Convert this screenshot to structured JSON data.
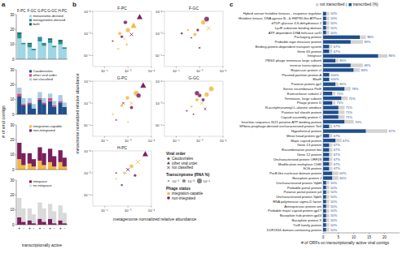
{
  "figure": {
    "panel_labels": [
      "a",
      "b",
      "c"
    ],
    "a_ylabel": "# of viral contigs",
    "a_xlabel": "transcriptionally active",
    "a_groups": [
      "F-PC",
      "F-GC",
      "G-PC",
      "G-GC",
      "H-PC"
    ],
    "b_xlabel": "metagenome normalized relative abundance",
    "b_ylabel": "metavirome normalized relative abundance",
    "b_legend": {
      "order_title": "Viral order",
      "orders": [
        {
          "name": "Caudovirales",
          "marker": "circle"
        },
        {
          "name": "other viral order",
          "marker": "triangle"
        },
        {
          "name": "not classified",
          "marker": "cross"
        }
      ],
      "size_title": "Transcriptome (RNA %)",
      "sizes": [
        {
          "value": 0.001,
          "label": "10⁻³"
        },
        {
          "value": 0.01,
          "label": "10⁻²"
        },
        {
          "value": 0.1,
          "label": "10⁻¹"
        }
      ],
      "status_title": "Phage status"
    }
  },
  "chart_data": [
    {
      "type": "bar",
      "stacked": true,
      "legend": "upper right",
      "categories": [
        null,
        null,
        null,
        null,
        null,
        null,
        null,
        null,
        null,
        null
      ],
      "ylim": [
        0,
        30
      ],
      "yticks": [
        0,
        10,
        20,
        30
      ],
      "series": [
        {
          "name": "metavirome-derived",
          "color": "#9fd6e3",
          "values": [
            14,
            10,
            8,
            6,
            12,
            9,
            11,
            8,
            10,
            7
          ]
        },
        {
          "name": "metagenome-derived",
          "color": "#2b8f97",
          "values": [
            3,
            1,
            2,
            1,
            3,
            2,
            2,
            1,
            2,
            1
          ]
        },
        {
          "name": "both",
          "color": "#1d5c5a",
          "values": [
            1,
            0,
            1,
            0,
            0,
            0,
            1,
            0,
            1,
            0
          ]
        }
      ]
    },
    {
      "type": "bar",
      "stacked": true,
      "legend": "upper right",
      "categories": [
        null,
        null,
        null,
        null,
        null,
        null,
        null,
        null,
        null,
        null
      ],
      "ylim": [
        0,
        30
      ],
      "yticks": [
        0,
        10,
        20,
        30
      ],
      "series": [
        {
          "name": "Caudovirales",
          "color": "#1f4e8c",
          "values": [
            12,
            6,
            7,
            4,
            10,
            7,
            9,
            5,
            8,
            5
          ]
        },
        {
          "name": "other viral order",
          "color": "#e2457a",
          "values": [
            2,
            1,
            1,
            0,
            1,
            1,
            2,
            1,
            1,
            0
          ]
        },
        {
          "name": "not classified",
          "color": "#a6cee3",
          "values": [
            4,
            4,
            3,
            3,
            4,
            3,
            3,
            3,
            4,
            3
          ]
        }
      ]
    },
    {
      "type": "bar",
      "stacked": true,
      "legend": "upper right",
      "categories": [
        null,
        null,
        null,
        null,
        null,
        null,
        null,
        null,
        null,
        null
      ],
      "ylim": [
        0,
        30
      ],
      "yticks": [
        0,
        10,
        20,
        30
      ],
      "series": [
        {
          "name": "integration-capable",
          "color": "#f2b843",
          "values": [
            7,
            3,
            4,
            2,
            6,
            3,
            5,
            2,
            5,
            2
          ]
        },
        {
          "name": "non-integrated",
          "color": "#7a1f5c",
          "values": [
            11,
            8,
            7,
            5,
            9,
            8,
            9,
            7,
            8,
            6
          ]
        }
      ]
    },
    {
      "type": "bar",
      "stacked": true,
      "legend": "upper right",
      "categories": [
        "+",
        "-",
        "+",
        "-",
        "+",
        "-",
        "+",
        "-",
        "+",
        "-"
      ],
      "ylim": [
        0,
        30
      ],
      "yticks": [
        0,
        10,
        20,
        30
      ],
      "series": [
        {
          "name": "integrase",
          "color": "#7a1f5c",
          "values": [
            5,
            2,
            3,
            1,
            4,
            2,
            4,
            1,
            3,
            1
          ]
        },
        {
          "name": "no integrase",
          "color": "#d9d9d9",
          "values": [
            13,
            9,
            8,
            6,
            11,
            9,
            10,
            8,
            10,
            7
          ]
        }
      ]
    },
    {
      "type": "scatter",
      "title": "F-PC",
      "log": true,
      "xlim": [
        1e-06,
        0.1
      ],
      "ylim": [
        1e-06,
        0.1
      ],
      "xticks": [
        {
          "value": 1e-05,
          "label": "10⁻⁵"
        },
        {
          "value": 0.001,
          "label": "10⁻³"
        },
        {
          "value": 0.1,
          "label": "10⁻¹"
        }
      ],
      "yticks": [
        {
          "value": 1e-05,
          "label": "10⁻⁵"
        },
        {
          "value": 0.001,
          "label": "10⁻³"
        },
        {
          "value": 0.1,
          "label": "10⁻¹"
        }
      ],
      "series": [
        {
          "name": "integration-capable",
          "color": "#f2b843",
          "x": [
            0.0002,
            0.0005,
            0.001,
            0.003,
            0.0008,
            0.00015
          ],
          "values": [
            0.001,
            0.0003,
            0.002,
            0.005,
            0.0001,
            4e-05
          ],
          "sizes": [
            0.01,
            0.001,
            0.05,
            0.1,
            0.002,
            0.001
          ],
          "orders": [
            "Caudovirales",
            "Caudovirales",
            "Caudovirales",
            "other viral order",
            "Caudovirales",
            "not classified"
          ]
        },
        {
          "name": "non-integrated",
          "color": "#7a1f5c",
          "x": [
            0.0003,
            0.0006,
            0.002,
            0.01,
            5e-05
          ],
          "values": [
            0.0005,
            0.01,
            0.0008,
            0.03,
            0.0002
          ],
          "sizes": [
            0.005,
            0.02,
            0.01,
            0.1,
            0.001
          ],
          "orders": [
            "Caudovirales",
            "Caudovirales",
            "not classified",
            "other viral order",
            "Caudovirales"
          ]
        }
      ]
    },
    {
      "type": "scatter",
      "title": "F-GC",
      "log": true,
      "xlim": [
        1e-06,
        0.1
      ],
      "ylim": [
        1e-06,
        0.1
      ],
      "xticks": [
        {
          "value": 1e-05,
          "label": "10⁻⁵"
        },
        {
          "value": 0.001,
          "label": "10⁻³"
        },
        {
          "value": 0.1,
          "label": "10⁻¹"
        }
      ],
      "yticks": [
        {
          "value": 1e-05,
          "label": "10⁻⁵"
        },
        {
          "value": 0.001,
          "label": "10⁻³"
        },
        {
          "value": 0.1,
          "label": "10⁻¹"
        }
      ],
      "series": [
        {
          "name": "integration-capable",
          "color": "#f2b843",
          "x": [
            0.0001,
            0.0004,
            0.002,
            0.006
          ],
          "values": [
            0.002,
            0.0008,
            0.01,
            0.003
          ],
          "sizes": [
            0.002,
            0.01,
            0.05,
            0.02
          ],
          "orders": [
            "Caudovirales",
            "Caudovirales",
            "Caudovirales",
            "not classified"
          ]
        },
        {
          "name": "non-integrated",
          "color": "#7a1f5c",
          "x": [
            0.0002,
            0.0007,
            0.001,
            0.004,
            3e-05
          ],
          "values": [
            0.0004,
            0.002,
            5e-05,
            0.02,
            0.001
          ],
          "sizes": [
            0.001,
            0.005,
            0.001,
            0.1,
            0.002
          ],
          "orders": [
            "Caudovirales",
            "Caudovirales",
            "not classified",
            "Caudovirales",
            "Caudovirales"
          ]
        }
      ]
    },
    {
      "type": "scatter",
      "title": "G-PC",
      "log": true,
      "xlim": [
        1e-06,
        0.1
      ],
      "ylim": [
        1e-06,
        0.1
      ],
      "xticks": [
        {
          "value": 1e-05,
          "label": "10⁻⁵"
        },
        {
          "value": 0.001,
          "label": "10⁻³"
        },
        {
          "value": 0.1,
          "label": "10⁻¹"
        }
      ],
      "yticks": [
        {
          "value": 1e-05,
          "label": "10⁻⁵"
        },
        {
          "value": 0.001,
          "label": "10⁻³"
        },
        {
          "value": 0.1,
          "label": "10⁻¹"
        }
      ],
      "series": [
        {
          "name": "integration-capable",
          "color": "#f2b843",
          "x": [
            5e-05,
            0.0003,
            0.0009,
            0.002,
            0.005,
            0.001
          ],
          "values": [
            0.0001,
            0.0006,
            0.003,
            0.001,
            0.008,
            2e-05
          ],
          "sizes": [
            0.001,
            0.005,
            0.02,
            0.01,
            0.1,
            0.001
          ],
          "orders": [
            "Caudovirales",
            "Caudovirales",
            "Caudovirales",
            "not classified",
            "Caudovirales",
            "Caudovirales"
          ]
        },
        {
          "name": "non-integrated",
          "color": "#7a1f5c",
          "x": [
            0.0001,
            0.0004,
            0.002,
            0.008,
            0.02
          ],
          "values": [
            3e-05,
            0.001,
            0.0004,
            0.005,
            0.04
          ],
          "sizes": [
            0.001,
            0.002,
            0.01,
            0.05,
            0.1
          ],
          "orders": [
            "Caudovirales",
            "not classified",
            "Caudovirales",
            "Caudovirales",
            "other viral order"
          ]
        }
      ]
    },
    {
      "type": "scatter",
      "title": "G-GC",
      "log": true,
      "xlim": [
        1e-06,
        0.1
      ],
      "ylim": [
        1e-06,
        0.1
      ],
      "xticks": [
        {
          "value": 1e-05,
          "label": "10⁻⁵"
        },
        {
          "value": 0.001,
          "label": "10⁻³"
        },
        {
          "value": 0.1,
          "label": "10⁻¹"
        }
      ],
      "yticks": [
        {
          "value": 1e-05,
          "label": "10⁻⁵"
        },
        {
          "value": 0.001,
          "label": "10⁻³"
        },
        {
          "value": 0.1,
          "label": "10⁻¹"
        }
      ],
      "series": [
        {
          "name": "integration-capable",
          "color": "#f2b843",
          "x": [
            0.0002,
            0.0006,
            0.0015,
            0.004,
            0.01
          ],
          "values": [
            0.0005,
            0.002,
            0.001,
            0.006,
            0.02
          ],
          "sizes": [
            0.002,
            0.01,
            0.005,
            0.05,
            0.1
          ],
          "orders": [
            "Caudovirales",
            "Caudovirales",
            "not classified",
            "Caudovirales",
            "Caudovirales"
          ]
        },
        {
          "name": "non-integrated",
          "color": "#7a1f5c",
          "x": [
            8e-05,
            0.0003,
            0.001,
            0.003,
            0.0006,
            0.002
          ],
          "values": [
            0.0002,
            0.0001,
            0.005,
            0.0003,
            0.008,
            0.002
          ],
          "sizes": [
            0.001,
            0.001,
            0.02,
            0.002,
            0.05,
            0.01
          ],
          "orders": [
            "Caudovirales",
            "Caudovirales",
            "Caudovirales",
            "not classified",
            "Caudovirales",
            "Caudovirales"
          ]
        }
      ]
    },
    {
      "type": "scatter",
      "title": "H-PC",
      "log": true,
      "xlim": [
        1e-06,
        0.1
      ],
      "ylim": [
        1e-06,
        0.1
      ],
      "xticks": [
        {
          "value": 1e-05,
          "label": "10⁻⁵"
        },
        {
          "value": 0.001,
          "label": "10⁻³"
        },
        {
          "value": 0.1,
          "label": "10⁻¹"
        }
      ],
      "yticks": [
        {
          "value": 1e-05,
          "label": "10⁻⁵"
        },
        {
          "value": 0.001,
          "label": "10⁻³"
        },
        {
          "value": 0.1,
          "label": "10⁻¹"
        }
      ],
      "series": [
        {
          "name": "integration-capable",
          "color": "#f2b843",
          "x": [
            0.0001,
            0.0005,
            0.002,
            0.007
          ],
          "values": [
            0.0003,
            0.001,
            0.004,
            0.01
          ],
          "sizes": [
            0.001,
            0.005,
            0.02,
            0.05
          ],
          "orders": [
            "Caudovirales",
            "Caudovirales",
            "Caudovirales",
            "not classified"
          ]
        },
        {
          "name": "non-integrated",
          "color": "#7a1f5c",
          "x": [
            0.0003,
            0.001,
            0.004,
            0.03,
            0.0001
          ],
          "values": [
            8e-05,
            0.002,
            0.0006,
            0.05,
            0.001
          ],
          "sizes": [
            0.002,
            0.01,
            0.005,
            0.1,
            0.001
          ],
          "orders": [
            "Caudovirales",
            "not classified",
            "Caudovirales",
            "other viral order",
            "Caudovirales"
          ]
        }
      ]
    },
    {
      "type": "bar",
      "orientation": "horizontal",
      "stacked": true,
      "legend": "upper right",
      "xlabel": "# of ORFs on transcriptionally active viral contigs",
      "xlim": [
        0,
        25
      ],
      "xticks": [
        0,
        5,
        10,
        15,
        20
      ],
      "categories": [
        "Hybrid sensor histidine kinases - response regulator",
        "Histidine kinase, DNA gyrase B-, & HSP90-like ATPase",
        "dTDP-glucose 4,6-dehydratase 2",
        "LysR substrate binding domain",
        "ATP-dependent DNA helicase uvrD",
        "Packaging protein",
        "Probable tape measure protein",
        "Binding-protein-dependent transport system",
        "Gene 65 protein",
        "Integrase",
        "PBSX phage terminase large subunit",
        "reverse transcriptase",
        "Repressor protein cI",
        "Plasmid partition protein A",
        "MazE",
        "Putative protein gp1",
        "Serine recombinase PinE",
        "Exonuclease subunit 2",
        "Terminase, large subunit",
        "Phage protein D",
        "N-acetylmuramoyl-L-alanine amidase",
        "Putative tail sheath protein",
        "Capsid assembly protein C",
        "Insertion sequence IS21 putative ATP-binding protein",
        "SPbeta prophage-derived uncharacterized protein YorI",
        "Hypothetical protein",
        "Minor head protein gp7",
        "Major capsid protein",
        "Gene 13 protein",
        "Recombination protein bet",
        "Gene 12 protein",
        "Uncharacterized protein ORF28",
        "Modification methylase CfrBI",
        "SOS protein",
        "ParB-like nuclease domain protein",
        "Baseplate protein J",
        "Uncharacterized protein YqbH",
        "Probable portal protein",
        "Putative portal protein p4",
        "Uncharacterized protein YqbG",
        "RNA polymerase sigma-D factor",
        "Antirepressor protein ant",
        "Probable major capsid protein gp17",
        "Baseplate hub protein gp44",
        "Baseplate protein X",
        "YvrE family protein",
        "DUF2634 domain-containing protein"
      ],
      "series": [
        {
          "name": "transcribed (%)",
          "color": "#1f4e8c",
          "values": [
            1,
            1,
            1,
            1,
            1,
            12,
            9,
            2,
            2,
            18,
            4,
            9,
            10,
            2,
            2,
            4,
            7,
            3,
            6,
            3,
            5,
            5,
            5,
            7,
            2,
            14,
            2,
            4,
            2,
            2,
            2,
            2,
            2,
            2,
            3,
            3,
            1,
            1,
            1,
            1,
            1,
            1,
            1,
            1,
            1,
            1,
            1
          ]
        },
        {
          "name": "not transcribed",
          "color": "#d3d3d3",
          "values": [
            1,
            1,
            1,
            1,
            1,
            2,
            4,
            1,
            1,
            3,
            1,
            4,
            2,
            0,
            0,
            1,
            2,
            1,
            2,
            1,
            2,
            2,
            2,
            3,
            1,
            7,
            1,
            2,
            1,
            1,
            1,
            1,
            1,
            1,
            2,
            2,
            1,
            1,
            1,
            1,
            1,
            1,
            1,
            1,
            1,
            1,
            1
          ]
        }
      ],
      "annotations": [
        "50%",
        "50%",
        "50%",
        "50%",
        "50%",
        "86%",
        "69%",
        "67%",
        "67%",
        "86%",
        "80%",
        "69%",
        "83%",
        "100%",
        "100%",
        "80%",
        "78%",
        "75%",
        "75%",
        "75%",
        "71%",
        "71%",
        "71%",
        "70%",
        "67%",
        "67%",
        "67%",
        "67%",
        "67%",
        "67%",
        "67%",
        "67%",
        "67%",
        "67%",
        "60%",
        "60%",
        "50%",
        "50%",
        "50%",
        "50%",
        "50%",
        "50%",
        "50%",
        "50%",
        "50%",
        "50%",
        "50%"
      ]
    }
  ]
}
